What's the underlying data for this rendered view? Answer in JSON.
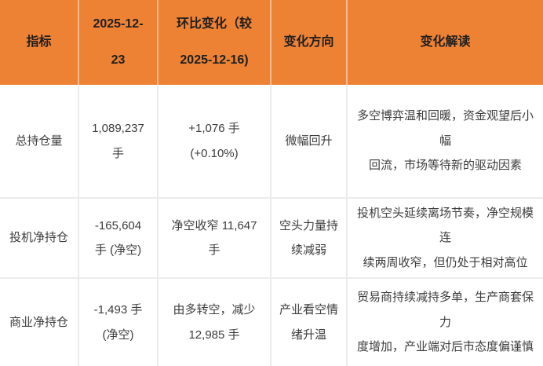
{
  "colors": {
    "header_bg": "#EE8234",
    "header_text": "#1f1f1f",
    "body_text": "#3c3c3c",
    "grid_line": "#ebebeb"
  },
  "table": {
    "header": {
      "indicator": "指标",
      "date_current": "2025-12-\n23",
      "wow_change": "环比变化（较\n2025-12-16)",
      "direction": "变化方向",
      "interpretation": "变化解读"
    },
    "rows": [
      {
        "indicator": "总持仓量",
        "value": "1,089,237\n手",
        "change": "+1,076 手\n(+0.10%)",
        "direction": "微幅回升",
        "interpretation": "多空博弈温和回暖，资金观望后小幅\n回流，市场等待新的驱动因素"
      },
      {
        "indicator": "投机净持仓",
        "value": "-165,604\n手 (净空)",
        "change": "净空收窄 11,647\n手",
        "direction": "空头力量持\n续减弱",
        "interpretation": "投机空头延续离场节奏，净空规模连\n续两周收窄，但仍处于相对高位"
      },
      {
        "indicator": "商业净持仓",
        "value": "-1,493 手\n(净空)",
        "change": "由多转空，减少\n12,985 手",
        "direction": "产业看空情\n绪升温",
        "interpretation": "贸易商持续减持多单，生产商套保力\n度增加，产业端对后市态度偏谨慎"
      }
    ]
  }
}
